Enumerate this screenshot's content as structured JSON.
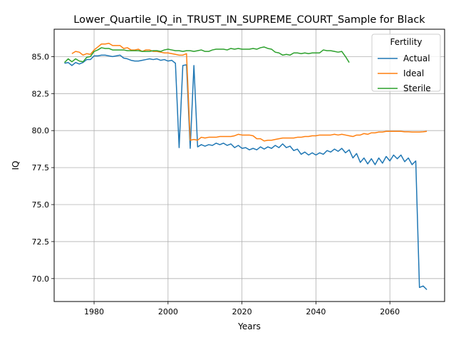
{
  "chart_data": {
    "type": "line",
    "title": "Lower_Quartile_IQ_in_TRUST_IN_SUPREME_COURT_Sample for Black",
    "xlabel": "Years",
    "ylabel": "IQ",
    "xlim": [
      1969.2,
      2074.8
    ],
    "ylim": [
      68.45,
      86.85
    ],
    "xticks": [
      1980,
      2000,
      2020,
      2040,
      2060
    ],
    "xtick_labels": [
      "1980",
      "2000",
      "2020",
      "2040",
      "2060"
    ],
    "yticks": [
      70.0,
      72.5,
      75.0,
      77.5,
      80.0,
      82.5,
      85.0
    ],
    "ytick_labels": [
      "70.0",
      "72.5",
      "75.0",
      "77.5",
      "80.0",
      "82.5",
      "85.0"
    ],
    "grid": true,
    "legend": {
      "title": "Fertility",
      "position": "upper right"
    },
    "series": [
      {
        "name": "Actual",
        "color": "#1f77b4",
        "x": [
          1972,
          1973,
          1974,
          1975,
          1976,
          1977,
          1978,
          1979,
          1980,
          1981,
          1982,
          1983,
          1984,
          1985,
          1986,
          1987,
          1988,
          1989,
          1990,
          1991,
          1992,
          1993,
          1994,
          1995,
          1996,
          1997,
          1998,
          1999,
          2000,
          2001,
          2002,
          2003,
          2004,
          2005,
          2006,
          2007,
          2008,
          2009,
          2010,
          2011,
          2012,
          2013,
          2014,
          2015,
          2016,
          2017,
          2018,
          2019,
          2020,
          2021,
          2022,
          2023,
          2024,
          2025,
          2026,
          2027,
          2028,
          2029,
          2030,
          2031,
          2032,
          2033,
          2034,
          2035,
          2036,
          2037,
          2038,
          2039,
          2040,
          2041,
          2042,
          2043,
          2044,
          2045,
          2046,
          2047,
          2048,
          2049,
          2050,
          2051,
          2052,
          2053,
          2054,
          2055,
          2056,
          2057,
          2058,
          2059,
          2060,
          2061,
          2062,
          2063,
          2064,
          2065,
          2066,
          2067,
          2068,
          2069,
          2070
        ],
        "y": [
          84.55,
          84.6,
          84.4,
          84.6,
          84.5,
          84.6,
          84.8,
          84.8,
          85.05,
          85.05,
          85.1,
          85.1,
          85.05,
          85.0,
          85.05,
          85.1,
          84.9,
          84.85,
          84.75,
          84.7,
          84.7,
          84.75,
          84.8,
          84.85,
          84.8,
          84.85,
          84.75,
          84.8,
          84.7,
          84.75,
          84.55,
          78.85,
          84.4,
          84.45,
          78.8,
          84.4,
          78.9,
          79.05,
          78.95,
          79.05,
          79.0,
          79.15,
          79.05,
          79.15,
          79.0,
          79.1,
          78.85,
          79.0,
          78.8,
          78.85,
          78.7,
          78.8,
          78.7,
          78.9,
          78.75,
          78.9,
          78.8,
          79.0,
          78.85,
          79.1,
          78.85,
          78.95,
          78.65,
          78.75,
          78.4,
          78.55,
          78.35,
          78.5,
          78.35,
          78.5,
          78.4,
          78.65,
          78.55,
          78.75,
          78.6,
          78.8,
          78.5,
          78.7,
          78.15,
          78.45,
          77.85,
          78.15,
          77.75,
          78.1,
          77.7,
          78.15,
          77.8,
          78.25,
          77.95,
          78.35,
          78.1,
          78.35,
          77.9,
          78.15,
          77.7,
          77.95,
          69.4,
          69.5,
          69.25
        ]
      },
      {
        "name": "Ideal",
        "color": "#ff7f0e",
        "x": [
          1974,
          1975,
          1976,
          1977,
          1978,
          1979,
          1980,
          1981,
          1982,
          1983,
          1984,
          1985,
          1986,
          1987,
          1988,
          1989,
          1990,
          1991,
          1992,
          1993,
          1994,
          1995,
          1996,
          1997,
          1998,
          1999,
          2000,
          2001,
          2002,
          2003,
          2004,
          2005,
          2006,
          2007,
          2008,
          2009,
          2010,
          2011,
          2012,
          2013,
          2014,
          2015,
          2016,
          2017,
          2018,
          2019,
          2020,
          2021,
          2022,
          2023,
          2024,
          2025,
          2026,
          2027,
          2028,
          2029,
          2030,
          2031,
          2032,
          2033,
          2034,
          2035,
          2036,
          2037,
          2038,
          2039,
          2040,
          2041,
          2042,
          2043,
          2044,
          2045,
          2046,
          2047,
          2048,
          2049,
          2050,
          2051,
          2052,
          2053,
          2054,
          2055,
          2056,
          2057,
          2058,
          2059,
          2060,
          2061,
          2062,
          2063,
          2064,
          2065,
          2066,
          2067,
          2068,
          2069,
          2070
        ],
        "y": [
          85.2,
          85.35,
          85.3,
          85.1,
          85.2,
          85.15,
          85.45,
          85.65,
          85.85,
          85.85,
          85.9,
          85.75,
          85.75,
          85.75,
          85.55,
          85.6,
          85.45,
          85.45,
          85.5,
          85.35,
          85.45,
          85.45,
          85.35,
          85.35,
          85.3,
          85.25,
          85.25,
          85.2,
          85.15,
          85.1,
          85.1,
          85.2,
          79.35,
          79.4,
          79.35,
          79.55,
          79.5,
          79.55,
          79.55,
          79.55,
          79.6,
          79.6,
          79.6,
          79.6,
          79.65,
          79.75,
          79.7,
          79.7,
          79.7,
          79.65,
          79.45,
          79.45,
          79.3,
          79.35,
          79.35,
          79.4,
          79.45,
          79.5,
          79.5,
          79.5,
          79.5,
          79.55,
          79.55,
          79.6,
          79.6,
          79.65,
          79.65,
          79.7,
          79.7,
          79.7,
          79.7,
          79.75,
          79.7,
          79.75,
          79.7,
          79.65,
          79.6,
          79.7,
          79.7,
          79.8,
          79.75,
          79.85,
          79.85,
          79.9,
          79.9,
          79.95,
          79.95,
          79.95,
          79.95,
          79.95,
          79.92,
          79.92,
          79.9,
          79.9,
          79.9,
          79.92,
          79.95
        ]
      },
      {
        "name": "Sterile",
        "color": "#2ca02c",
        "x": [
          1972,
          1973,
          1974,
          1975,
          1976,
          1977,
          1978,
          1979,
          1980,
          1981,
          1982,
          1983,
          1984,
          1985,
          1986,
          1987,
          1988,
          1989,
          1990,
          1991,
          1992,
          1993,
          1994,
          1995,
          1996,
          1997,
          1998,
          1999,
          2000,
          2001,
          2002,
          2003,
          2004,
          2005,
          2006,
          2007,
          2008,
          2009,
          2010,
          2011,
          2012,
          2013,
          2014,
          2015,
          2016,
          2017,
          2018,
          2019,
          2020,
          2021,
          2022,
          2023,
          2024,
          2025,
          2026,
          2027,
          2028,
          2029,
          2030,
          2031,
          2032,
          2033,
          2034,
          2035,
          2036,
          2037,
          2038,
          2039,
          2040,
          2041,
          2042,
          2043,
          2044,
          2045,
          2046,
          2047,
          2048,
          2049
        ],
        "y": [
          84.6,
          84.85,
          84.65,
          84.85,
          84.7,
          84.65,
          84.95,
          85.0,
          85.35,
          85.45,
          85.6,
          85.55,
          85.55,
          85.45,
          85.45,
          85.45,
          85.45,
          85.4,
          85.4,
          85.4,
          85.4,
          85.35,
          85.35,
          85.35,
          85.4,
          85.4,
          85.35,
          85.45,
          85.5,
          85.45,
          85.4,
          85.4,
          85.35,
          85.4,
          85.4,
          85.35,
          85.4,
          85.45,
          85.35,
          85.35,
          85.45,
          85.5,
          85.5,
          85.5,
          85.45,
          85.55,
          85.5,
          85.55,
          85.5,
          85.5,
          85.5,
          85.55,
          85.5,
          85.6,
          85.65,
          85.55,
          85.5,
          85.3,
          85.25,
          85.1,
          85.15,
          85.1,
          85.25,
          85.25,
          85.2,
          85.25,
          85.2,
          85.25,
          85.25,
          85.25,
          85.45,
          85.4,
          85.4,
          85.35,
          85.3,
          85.35,
          85.0,
          84.6
        ]
      }
    ]
  }
}
